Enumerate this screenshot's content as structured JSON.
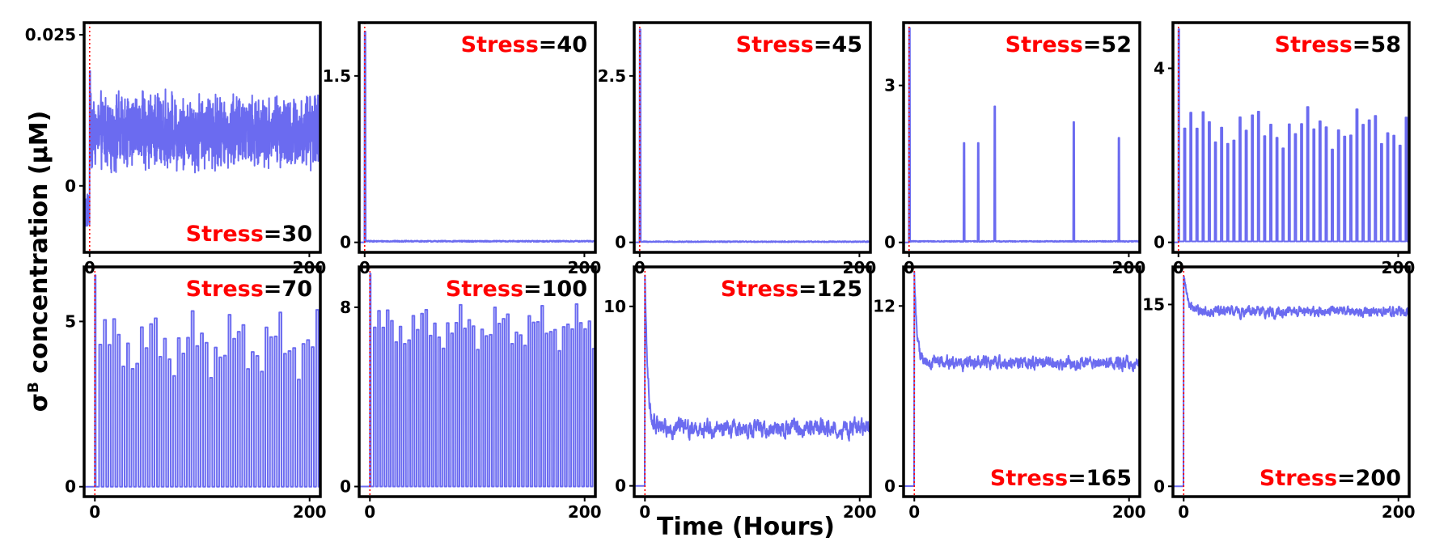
{
  "figure": {
    "ylabel_sigma": "σ",
    "ylabel_sup": "B",
    "ylabel_rest": " concentration (μM)",
    "xlabel": "Time (Hours)",
    "stress_word": "Stress",
    "colors": {
      "trace": "#6b6bf0",
      "marker": "#ff0000",
      "frame": "#000000"
    }
  },
  "chart_data": [
    {
      "type": "line",
      "stress": "=30",
      "stress_position": "bottom-right",
      "xlim": [
        -5,
        210
      ],
      "ylim": [
        -0.011,
        0.027
      ],
      "yticks": [
        {
          "v": 0,
          "label": "0"
        },
        {
          "v": 0.025,
          "label": "0.025"
        }
      ],
      "xticks": [
        {
          "v": 0,
          "label": "0"
        },
        {
          "v": 200,
          "label": "200"
        }
      ],
      "pattern": "noise",
      "pre": -0.004,
      "level": 0.009,
      "noise": 0.004,
      "marker_x": 0
    },
    {
      "type": "line",
      "stress": "=40",
      "stress_position": "top-right",
      "xlim": [
        -5,
        210
      ],
      "ylim": [
        -0.09,
        1.98
      ],
      "yticks": [
        {
          "v": 0,
          "label": "0"
        },
        {
          "v": 1.5,
          "label": "1.5"
        }
      ],
      "xticks": [
        {
          "v": 0,
          "label": "0"
        },
        {
          "v": 200,
          "label": "200"
        }
      ],
      "pattern": "spike",
      "pre": 0,
      "peak": 1.9,
      "level": 0.01,
      "noise": 0.006,
      "marker_x": 0
    },
    {
      "type": "line",
      "stress": "=45",
      "stress_position": "top-right",
      "xlim": [
        -5,
        210
      ],
      "ylim": [
        -0.15,
        3.3
      ],
      "yticks": [
        {
          "v": 0,
          "label": "0"
        },
        {
          "v": 2.5,
          "label": "2.5"
        }
      ],
      "xticks": [
        {
          "v": 0,
          "label": "0"
        },
        {
          "v": 200,
          "label": "200"
        }
      ],
      "pattern": "spike",
      "pre": 0,
      "peak": 3.2,
      "level": 0.01,
      "noise": 0.008,
      "marker_x": 0
    },
    {
      "type": "line",
      "stress": "=52",
      "stress_position": "top-right",
      "xlim": [
        -5,
        210
      ],
      "ylim": [
        -0.19,
        4.2
      ],
      "yticks": [
        {
          "v": 0,
          "label": "0"
        },
        {
          "v": 3,
          "label": "3"
        }
      ],
      "xticks": [
        {
          "v": 0,
          "label": "0"
        },
        {
          "v": 200,
          "label": "200"
        }
      ],
      "pattern": "spike",
      "pre": 0,
      "peak": 4.1,
      "level": 0.02,
      "noise": 0.01,
      "marker_x": 0,
      "bursts": [
        {
          "x": 50,
          "h": 1.9
        },
        {
          "x": 63,
          "h": 1.9
        },
        {
          "x": 78,
          "h": 2.6
        },
        {
          "x": 150,
          "h": 2.3
        },
        {
          "x": 191,
          "h": 2.0
        }
      ]
    },
    {
      "type": "line",
      "stress": "=58",
      "stress_position": "top-right",
      "xlim": [
        -5,
        210
      ],
      "ylim": [
        -0.23,
        5.05
      ],
      "yticks": [
        {
          "v": 0,
          "label": "0"
        },
        {
          "v": 4,
          "label": "4"
        }
      ],
      "xticks": [
        {
          "v": 0,
          "label": "0"
        },
        {
          "v": 200,
          "label": "200"
        }
      ],
      "pattern": "pulses",
      "pre": 0,
      "peak": 4.9,
      "period": 5.6,
      "start": 5,
      "amp": 2.6,
      "amp_var": 0.2,
      "base": 0.02,
      "duty": 0.25,
      "marker_x": 0
    },
    {
      "type": "line",
      "stress": "=70",
      "stress_position": "top-right",
      "xlim": [
        -10,
        210
      ],
      "ylim": [
        -0.3,
        6.65
      ],
      "yticks": [
        {
          "v": 0,
          "label": "0"
        },
        {
          "v": 5,
          "label": "5"
        }
      ],
      "xticks": [
        {
          "v": 0,
          "label": "0"
        },
        {
          "v": 200,
          "label": "200"
        }
      ],
      "pattern": "pulses",
      "pre": 0,
      "peak": 6.4,
      "period": 4.3,
      "start": 4,
      "amp": 4.3,
      "amp_var": 0.25,
      "base": 0,
      "duty": 0.5,
      "marker_x": 0
    },
    {
      "type": "line",
      "stress": "=100",
      "stress_position": "top-right",
      "xlim": [
        -10,
        210
      ],
      "ylim": [
        -0.45,
        9.8
      ],
      "yticks": [
        {
          "v": 0,
          "label": "0"
        },
        {
          "v": 8,
          "label": "8"
        }
      ],
      "xticks": [
        {
          "v": 0,
          "label": "0"
        },
        {
          "v": 200,
          "label": "200"
        }
      ],
      "pattern": "pulses",
      "pre": 0,
      "peak": 9.5,
      "period": 4.0,
      "start": 3.5,
      "amp": 7.1,
      "amp_var": 0.15,
      "base": 0,
      "duty": 0.5,
      "marker_x": 0
    },
    {
      "type": "line",
      "stress": "=125",
      "stress_position": "top-right",
      "xlim": [
        -10,
        210
      ],
      "ylim": [
        -0.6,
        12.2
      ],
      "yticks": [
        {
          "v": 0,
          "label": "0"
        },
        {
          "v": 10,
          "label": "10"
        }
      ],
      "xticks": [
        {
          "v": 0,
          "label": "0"
        },
        {
          "v": 200,
          "label": "200"
        }
      ],
      "pattern": "decay",
      "pre": 0,
      "peak": 11.9,
      "level": 3.2,
      "tau": 2.5,
      "noise": 0.35,
      "marker_x": 0
    },
    {
      "type": "line",
      "stress": "=165",
      "stress_position": "bottom-right",
      "xlim": [
        -10,
        210
      ],
      "ylim": [
        -0.7,
        14.6
      ],
      "yticks": [
        {
          "v": 0,
          "label": "0"
        },
        {
          "v": 12,
          "label": "12"
        }
      ],
      "xticks": [
        {
          "v": 0,
          "label": "0"
        },
        {
          "v": 200,
          "label": "200"
        }
      ],
      "pattern": "decay",
      "pre": 0,
      "peak": 14.2,
      "level": 8.2,
      "tau": 2.5,
      "noise": 0.3,
      "marker_x": 0
    },
    {
      "type": "line",
      "stress": "=200",
      "stress_position": "bottom-right",
      "xlim": [
        -10,
        210
      ],
      "ylim": [
        -0.85,
        18.1
      ],
      "yticks": [
        {
          "v": 0,
          "label": "0"
        },
        {
          "v": 15,
          "label": "15"
        }
      ],
      "xticks": [
        {
          "v": 0,
          "label": "0"
        },
        {
          "v": 200,
          "label": "200"
        }
      ],
      "pattern": "decay",
      "pre": 0,
      "peak": 17.5,
      "level": 14.4,
      "tau": 4,
      "noise": 0.3,
      "marker_x": 0
    }
  ]
}
